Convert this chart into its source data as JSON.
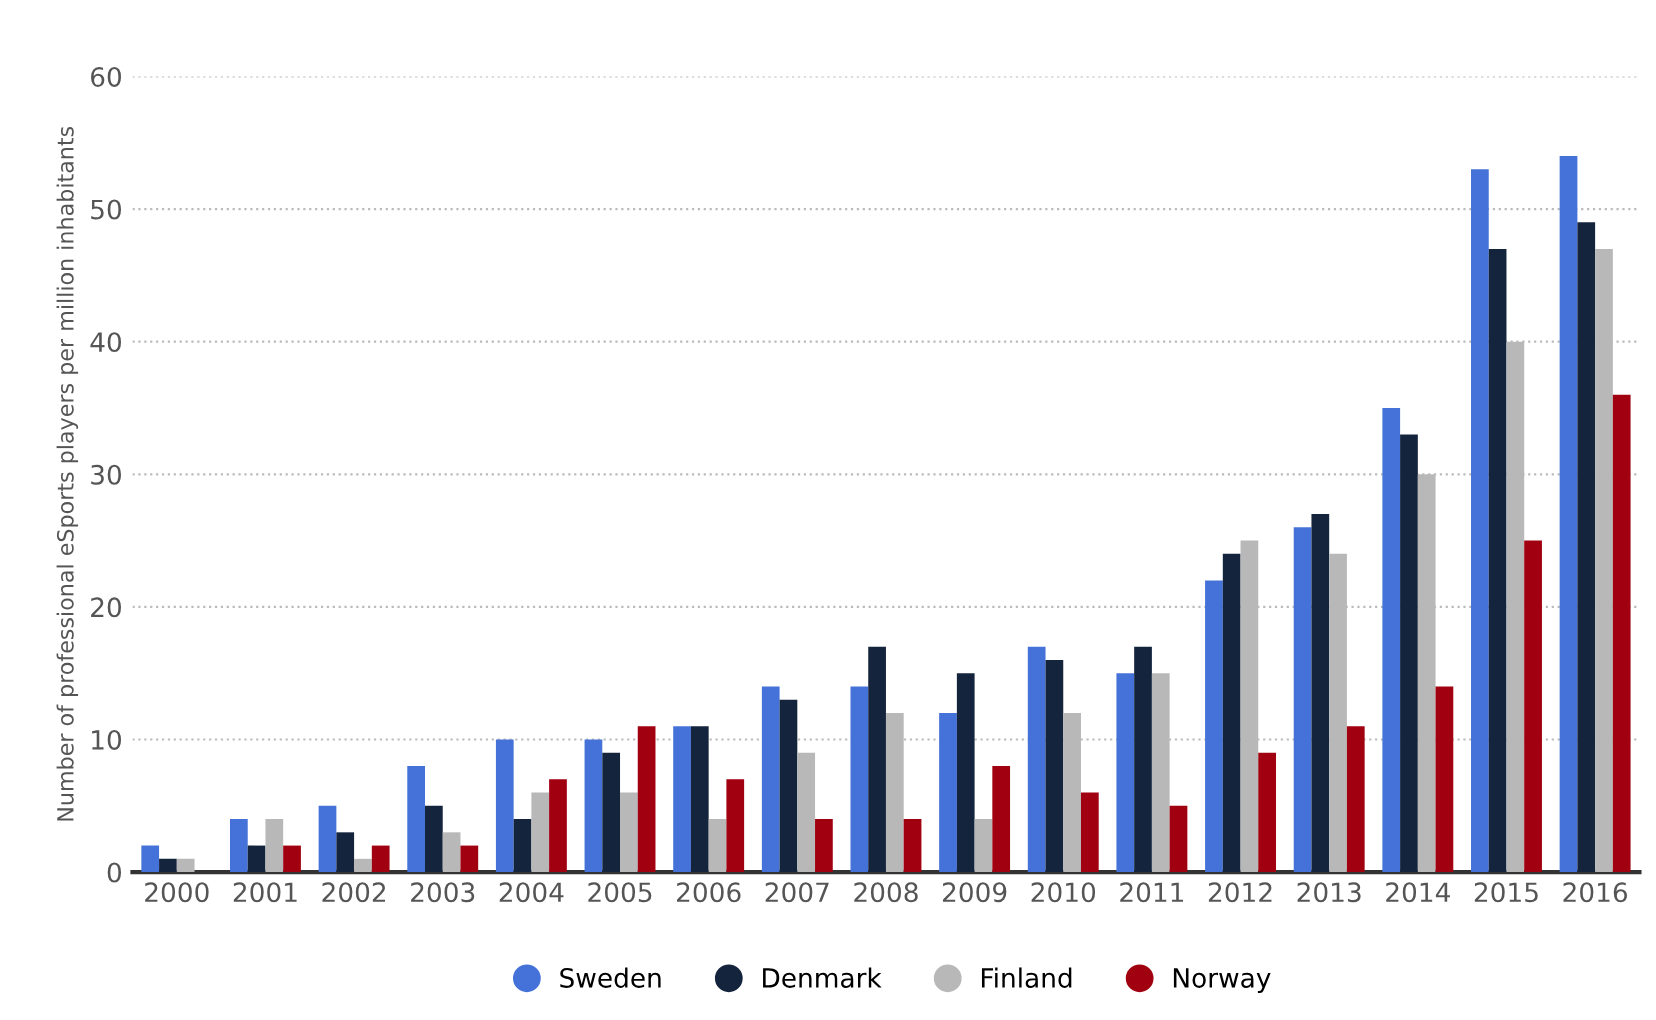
{
  "chart_data": {
    "type": "bar",
    "ylabel": "Number of professional eSports players per million inhabitants",
    "categories": [
      "2000",
      "2001",
      "2002",
      "2003",
      "2004",
      "2005",
      "2006",
      "2007",
      "2008",
      "2009",
      "2010",
      "2011",
      "2012",
      "2013",
      "2014",
      "2015",
      "2016"
    ],
    "series": [
      {
        "name": "Sweden",
        "color": "#4472d8",
        "values": [
          2,
          4,
          5,
          8,
          10,
          10,
          11,
          14,
          14,
          12,
          17,
          15,
          22,
          26,
          35,
          53,
          54
        ]
      },
      {
        "name": "Denmark",
        "color": "#15243d",
        "values": [
          1,
          2,
          3,
          5,
          4,
          9,
          11,
          13,
          17,
          15,
          16,
          17,
          24,
          27,
          33,
          47,
          49
        ]
      },
      {
        "name": "Finland",
        "color": "#b8b8b8",
        "values": [
          1,
          4,
          1,
          3,
          6,
          6,
          4,
          9,
          12,
          4,
          12,
          15,
          25,
          24,
          30,
          40,
          47
        ]
      },
      {
        "name": "Norway",
        "color": "#a0000f",
        "values": [
          0,
          2,
          2,
          2,
          7,
          11,
          7,
          4,
          4,
          8,
          6,
          5,
          9,
          11,
          14,
          25,
          36
        ]
      }
    ],
    "ylim": [
      0,
      60
    ],
    "yticks": [
      0,
      10,
      20,
      30,
      40,
      50,
      60
    ],
    "grid": "y",
    "legend": "bottom"
  }
}
